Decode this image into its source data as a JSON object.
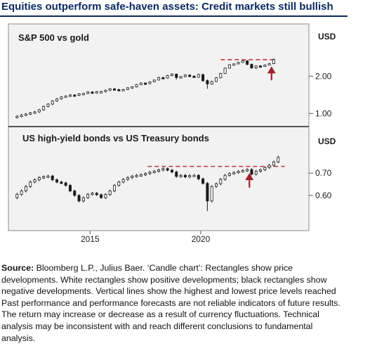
{
  "title": "Equities outperform safe-haven assets: Credit markets still bullish",
  "colors": {
    "title": "#0b2a63",
    "panel_background": "#f2f2f2",
    "frame": "#8c8c8c",
    "candle": "#1a1a1a",
    "resistance_line": "#c0343f",
    "arrow": "#a0202c"
  },
  "footnote": {
    "source_label": "Source:",
    "text": " Bloomberg L.P., Julius Baer. ‘Candle chart’: Rectangles show price developments. White rectangles show positive developments; black rectangles show negative developments. Vertical lines show the highest and lowest price levels reached Past performance and performance forecasts are not reliable indicators of future results. The return may increase or decrease as a result of currency fluctuations. Technical analysis may be inconsistent with and reach different conclusions to fundamental analysis."
  },
  "chart_data": [
    {
      "type": "candlestick",
      "title": "S&P 500 vs gold",
      "unit": "USD",
      "yscale": "log",
      "ylim": [
        0.87,
        3.05
      ],
      "yticks": [
        1.0,
        2.0
      ],
      "ytick_labels": [
        "1.00",
        "2.00"
      ],
      "xlim": [
        2011.5,
        2024.0
      ],
      "xticks": [
        2015,
        2020
      ],
      "xtick_labels": [
        "2015",
        "2020"
      ],
      "grid": false,
      "resistance_level": 2.72,
      "resistance_range": [
        2020.9,
        2023.3
      ],
      "arrow_x": 2023.2,
      "arrow_from": 1.85,
      "arrow_to": 2.4,
      "x": [
        2011.7,
        2011.9,
        2012.1,
        2012.3,
        2012.5,
        2012.7,
        2012.9,
        2013.1,
        2013.3,
        2013.5,
        2013.7,
        2013.9,
        2014.1,
        2014.3,
        2014.5,
        2014.7,
        2014.9,
        2015.1,
        2015.3,
        2015.5,
        2015.7,
        2015.9,
        2016.1,
        2016.3,
        2016.5,
        2016.7,
        2016.9,
        2017.1,
        2017.3,
        2017.5,
        2017.7,
        2017.9,
        2018.1,
        2018.3,
        2018.5,
        2018.7,
        2018.9,
        2019.1,
        2019.3,
        2019.5,
        2019.7,
        2019.9,
        2020.1,
        2020.3,
        2020.5,
        2020.7,
        2020.9,
        2021.1,
        2021.3,
        2021.5,
        2021.7,
        2021.9,
        2022.1,
        2022.3,
        2022.5,
        2022.7,
        2022.9,
        2023.1,
        2023.3
      ],
      "open": [
        0.93,
        0.95,
        0.97,
        0.99,
        1.01,
        1.03,
        1.07,
        1.14,
        1.19,
        1.26,
        1.31,
        1.36,
        1.38,
        1.41,
        1.4,
        1.44,
        1.45,
        1.49,
        1.47,
        1.5,
        1.5,
        1.54,
        1.58,
        1.56,
        1.55,
        1.56,
        1.61,
        1.64,
        1.71,
        1.76,
        1.74,
        1.8,
        1.86,
        1.95,
        1.93,
        2.02,
        2.08,
        1.95,
        1.98,
        2.04,
        2.0,
        1.96,
        2.06,
        1.84,
        1.73,
        1.81,
        1.94,
        2.1,
        2.32,
        2.47,
        2.51,
        2.58,
        2.66,
        2.49,
        2.33,
        2.42,
        2.4,
        2.46,
        2.52
      ],
      "close": [
        0.95,
        0.97,
        0.99,
        1.01,
        1.03,
        1.07,
        1.14,
        1.19,
        1.26,
        1.31,
        1.36,
        1.38,
        1.41,
        1.4,
        1.44,
        1.45,
        1.49,
        1.47,
        1.5,
        1.5,
        1.54,
        1.58,
        1.56,
        1.55,
        1.56,
        1.61,
        1.64,
        1.71,
        1.76,
        1.74,
        1.8,
        1.86,
        1.95,
        1.93,
        2.02,
        2.08,
        1.95,
        1.98,
        2.04,
        2.0,
        1.96,
        2.06,
        1.84,
        1.73,
        1.81,
        1.94,
        2.1,
        2.32,
        2.47,
        2.51,
        2.58,
        2.66,
        2.49,
        2.33,
        2.42,
        2.4,
        2.46,
        2.52,
        2.72
      ],
      "high": [
        0.97,
        0.99,
        1.01,
        1.03,
        1.05,
        1.09,
        1.16,
        1.21,
        1.28,
        1.33,
        1.38,
        1.4,
        1.43,
        1.43,
        1.46,
        1.47,
        1.51,
        1.51,
        1.52,
        1.53,
        1.56,
        1.6,
        1.6,
        1.58,
        1.58,
        1.63,
        1.66,
        1.73,
        1.78,
        1.78,
        1.82,
        1.88,
        1.98,
        1.97,
        2.05,
        2.11,
        2.1,
        2.01,
        2.07,
        2.07,
        2.03,
        2.09,
        2.09,
        1.88,
        1.84,
        1.97,
        2.13,
        2.35,
        2.5,
        2.54,
        2.61,
        2.69,
        2.69,
        2.53,
        2.45,
        2.45,
        2.49,
        2.55,
        2.78
      ],
      "low": [
        0.91,
        0.93,
        0.95,
        0.97,
        0.99,
        1.01,
        1.05,
        1.12,
        1.17,
        1.24,
        1.29,
        1.34,
        1.36,
        1.38,
        1.38,
        1.42,
        1.43,
        1.45,
        1.45,
        1.48,
        1.48,
        1.52,
        1.54,
        1.53,
        1.53,
        1.54,
        1.59,
        1.62,
        1.69,
        1.72,
        1.72,
        1.78,
        1.84,
        1.91,
        1.91,
        2.0,
        1.88,
        1.92,
        1.96,
        1.96,
        1.93,
        1.94,
        1.8,
        1.58,
        1.71,
        1.79,
        1.92,
        2.08,
        2.3,
        2.45,
        2.49,
        2.56,
        2.44,
        2.29,
        2.29,
        2.36,
        2.38,
        2.44,
        2.5
      ]
    },
    {
      "type": "candlestick",
      "title": "US high-yield bonds vs US Treasury bonds",
      "unit": "USD",
      "yscale": "linear",
      "ylim": [
        0.48,
        0.795
      ],
      "yticks": [
        0.6,
        0.7
      ],
      "ytick_labels": [
        "0.60",
        "0.70"
      ],
      "xlim": [
        2011.5,
        2024.0
      ],
      "xticks": [
        2015,
        2020
      ],
      "xtick_labels": [
        "2015",
        "2020"
      ],
      "grid": false,
      "resistance_level": 0.73,
      "resistance_range": [
        2017.6,
        2023.8
      ],
      "arrow_x": 2022.2,
      "arrow_from": 0.635,
      "arrow_to": 0.7,
      "x": [
        2011.7,
        2011.9,
        2012.1,
        2012.3,
        2012.5,
        2012.7,
        2012.9,
        2013.1,
        2013.3,
        2013.5,
        2013.7,
        2013.9,
        2014.1,
        2014.3,
        2014.5,
        2014.7,
        2014.9,
        2015.1,
        2015.3,
        2015.5,
        2015.7,
        2015.9,
        2016.1,
        2016.3,
        2016.5,
        2016.7,
        2016.9,
        2017.1,
        2017.3,
        2017.5,
        2017.7,
        2017.9,
        2018.1,
        2018.3,
        2018.5,
        2018.7,
        2018.9,
        2019.1,
        2019.3,
        2019.5,
        2019.7,
        2019.9,
        2020.1,
        2020.3,
        2020.5,
        2020.7,
        2020.9,
        2021.1,
        2021.3,
        2021.5,
        2021.7,
        2021.9,
        2022.1,
        2022.3,
        2022.5,
        2022.7,
        2022.9,
        2023.1,
        2023.3,
        2023.5
      ],
      "open": [
        0.59,
        0.605,
        0.62,
        0.64,
        0.66,
        0.67,
        0.68,
        0.684,
        0.687,
        0.67,
        0.66,
        0.656,
        0.645,
        0.62,
        0.6,
        0.575,
        0.59,
        0.605,
        0.61,
        0.603,
        0.59,
        0.604,
        0.62,
        0.645,
        0.66,
        0.672,
        0.68,
        0.686,
        0.69,
        0.693,
        0.698,
        0.704,
        0.708,
        0.714,
        0.72,
        0.713,
        0.705,
        0.685,
        0.69,
        0.683,
        0.689,
        0.69,
        0.674,
        0.654,
        0.575,
        0.64,
        0.652,
        0.672,
        0.69,
        0.698,
        0.703,
        0.708,
        0.712,
        0.716,
        0.695,
        0.708,
        0.715,
        0.725,
        0.735,
        0.75
      ],
      "close": [
        0.605,
        0.62,
        0.64,
        0.66,
        0.67,
        0.68,
        0.684,
        0.687,
        0.67,
        0.66,
        0.656,
        0.645,
        0.62,
        0.6,
        0.575,
        0.59,
        0.605,
        0.61,
        0.603,
        0.59,
        0.604,
        0.62,
        0.645,
        0.66,
        0.672,
        0.68,
        0.686,
        0.69,
        0.693,
        0.698,
        0.704,
        0.708,
        0.714,
        0.72,
        0.713,
        0.705,
        0.685,
        0.69,
        0.683,
        0.689,
        0.69,
        0.674,
        0.654,
        0.575,
        0.64,
        0.652,
        0.672,
        0.69,
        0.698,
        0.703,
        0.708,
        0.712,
        0.716,
        0.695,
        0.708,
        0.715,
        0.725,
        0.735,
        0.75,
        0.77
      ],
      "high": [
        0.612,
        0.627,
        0.647,
        0.667,
        0.676,
        0.686,
        0.69,
        0.693,
        0.693,
        0.676,
        0.666,
        0.662,
        0.651,
        0.626,
        0.606,
        0.596,
        0.611,
        0.616,
        0.616,
        0.609,
        0.61,
        0.626,
        0.651,
        0.666,
        0.678,
        0.686,
        0.692,
        0.696,
        0.699,
        0.704,
        0.71,
        0.714,
        0.72,
        0.726,
        0.726,
        0.719,
        0.711,
        0.696,
        0.696,
        0.695,
        0.696,
        0.696,
        0.68,
        0.66,
        0.646,
        0.658,
        0.678,
        0.696,
        0.704,
        0.709,
        0.714,
        0.718,
        0.722,
        0.722,
        0.714,
        0.721,
        0.731,
        0.741,
        0.756,
        0.778
      ],
      "low": [
        0.583,
        0.598,
        0.613,
        0.633,
        0.654,
        0.664,
        0.674,
        0.678,
        0.664,
        0.654,
        0.65,
        0.639,
        0.614,
        0.594,
        0.569,
        0.569,
        0.584,
        0.599,
        0.597,
        0.584,
        0.584,
        0.598,
        0.614,
        0.639,
        0.654,
        0.666,
        0.674,
        0.68,
        0.684,
        0.687,
        0.692,
        0.698,
        0.702,
        0.708,
        0.707,
        0.699,
        0.679,
        0.679,
        0.677,
        0.677,
        0.683,
        0.668,
        0.648,
        0.53,
        0.569,
        0.634,
        0.646,
        0.666,
        0.684,
        0.692,
        0.697,
        0.702,
        0.706,
        0.689,
        0.689,
        0.702,
        0.709,
        0.719,
        0.729,
        0.744
      ]
    }
  ]
}
